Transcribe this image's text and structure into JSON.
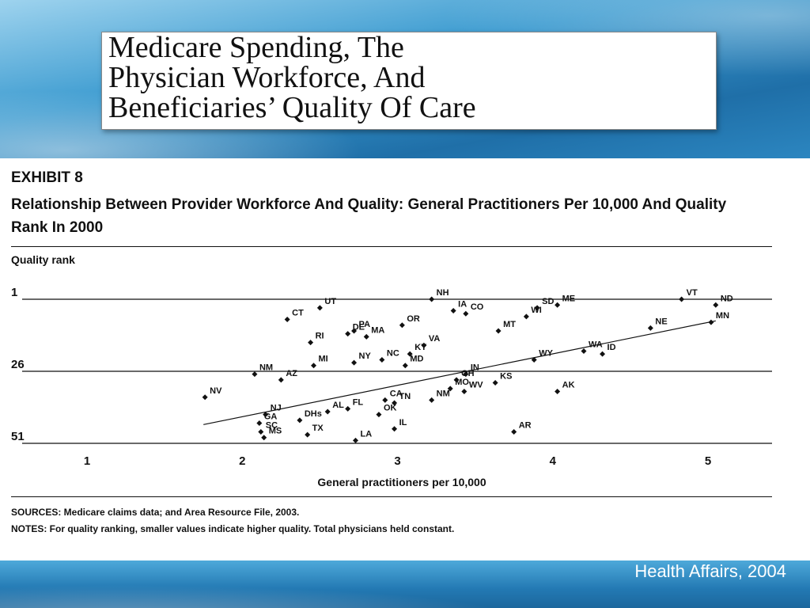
{
  "slide": {
    "title": "Medicare Spending, The\nPhysician Workforce, And\nBeneficiaries’ Quality Of Care",
    "credit": "Health Affairs, 2004"
  },
  "exhibit": {
    "label": "EXHIBIT 8",
    "title": "Relationship Between Provider Workforce And Quality: General Practitioners Per 10,000 And Quality Rank In 2000",
    "y_axis_title": "Quality rank",
    "sources": "SOURCES: Medicare claims data; and Area Resource File, 2003.",
    "notes": "NOTES: For quality ranking, smaller values indicate higher quality. Total physicians held constant."
  },
  "colors": {
    "banner": "#2a7fb8",
    "ink": "#111111",
    "white": "#ffffff"
  },
  "chart_data": {
    "type": "scatter",
    "title": "",
    "xlabel": "General practitioners per 10,000",
    "ylabel": "Quality rank",
    "xlim": [
      0.5,
      5.4
    ],
    "ylim": [
      51,
      1
    ],
    "x_ticks": [
      1,
      2,
      3,
      4,
      5
    ],
    "y_ticks": [
      1,
      26,
      51
    ],
    "gridlines_y": [
      1,
      26,
      51
    ],
    "trendline": {
      "x": [
        1.75,
        5.05
      ],
      "y": [
        44.5,
        8.5
      ]
    },
    "points": [
      {
        "label": "NH",
        "x": 3.22,
        "y": 1
      },
      {
        "label": "VT",
        "x": 4.83,
        "y": 1
      },
      {
        "label": "ME",
        "x": 4.03,
        "y": 3
      },
      {
        "label": "ND",
        "x": 5.05,
        "y": 3
      },
      {
        "label": "UT",
        "x": 2.5,
        "y": 4
      },
      {
        "label": "IA",
        "x": 3.36,
        "y": 5
      },
      {
        "label": "CO",
        "x": 3.44,
        "y": 6
      },
      {
        "label": "SD",
        "x": 3.9,
        "y": 4
      },
      {
        "label": "CT",
        "x": 2.29,
        "y": 8
      },
      {
        "label": "MN",
        "x": 5.02,
        "y": 9
      },
      {
        "label": "OR",
        "x": 3.03,
        "y": 10
      },
      {
        "label": "MT",
        "x": 3.65,
        "y": 12
      },
      {
        "label": "WI",
        "x": 3.83,
        "y": 7
      },
      {
        "label": "NE",
        "x": 4.63,
        "y": 11
      },
      {
        "label": "DE",
        "x": 2.68,
        "y": 13
      },
      {
        "label": "PA",
        "x": 2.72,
        "y": 12
      },
      {
        "label": "MA",
        "x": 2.8,
        "y": 14
      },
      {
        "label": "RI",
        "x": 2.44,
        "y": 16
      },
      {
        "label": "VA",
        "x": 3.17,
        "y": 17
      },
      {
        "label": "MI",
        "x": 2.46,
        "y": 24
      },
      {
        "label": "NY",
        "x": 2.72,
        "y": 23
      },
      {
        "label": "NC",
        "x": 2.9,
        "y": 22
      },
      {
        "label": "KY",
        "x": 3.08,
        "y": 20
      },
      {
        "label": "MD",
        "x": 3.05,
        "y": 24
      },
      {
        "label": "WY",
        "x": 3.88,
        "y": 22
      },
      {
        "label": "WA",
        "x": 4.2,
        "y": 19
      },
      {
        "label": "ID",
        "x": 4.32,
        "y": 20
      },
      {
        "label": "NM",
        "x": 2.08,
        "y": 27
      },
      {
        "label": "AZ",
        "x": 2.25,
        "y": 29
      },
      {
        "label": "NV",
        "x": 1.76,
        "y": 35
      },
      {
        "label": "IN",
        "x": 3.44,
        "y": 27
      },
      {
        "label": "OH",
        "x": 3.38,
        "y": 29
      },
      {
        "label": "KS",
        "x": 3.63,
        "y": 30
      },
      {
        "label": "MO",
        "x": 3.34,
        "y": 32
      },
      {
        "label": "WV",
        "x": 3.43,
        "y": 33
      },
      {
        "label": "NM",
        "x": 3.22,
        "y": 36
      },
      {
        "label": "AK",
        "x": 4.03,
        "y": 33
      },
      {
        "label": "CA",
        "x": 2.92,
        "y": 36
      },
      {
        "label": "TN",
        "x": 2.98,
        "y": 37
      },
      {
        "label": "FL",
        "x": 2.68,
        "y": 39
      },
      {
        "label": "AL",
        "x": 2.55,
        "y": 40
      },
      {
        "label": "NJ",
        "x": 2.15,
        "y": 41
      },
      {
        "label": "OK",
        "x": 2.88,
        "y": 41
      },
      {
        "label": "GA",
        "x": 2.11,
        "y": 44
      },
      {
        "label": "DHs",
        "x": 2.37,
        "y": 43
      },
      {
        "label": "IL",
        "x": 2.98,
        "y": 46
      },
      {
        "label": "SC",
        "x": 2.12,
        "y": 47
      },
      {
        "label": "MS",
        "x": 2.14,
        "y": 49
      },
      {
        "label": "TX",
        "x": 2.42,
        "y": 48
      },
      {
        "label": "AR",
        "x": 3.75,
        "y": 47
      },
      {
        "label": "LA",
        "x": 2.73,
        "y": 50
      }
    ]
  }
}
